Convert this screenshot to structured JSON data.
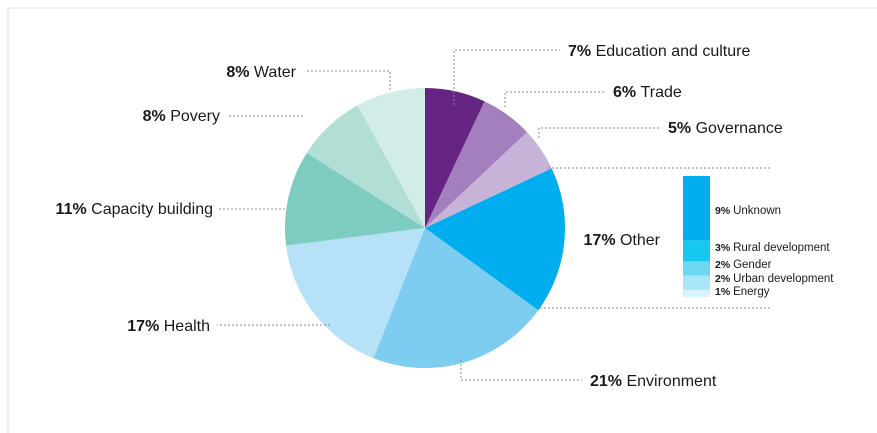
{
  "chart_data": {
    "type": "pie",
    "title": "",
    "slices": [
      {
        "label": "Education and culture",
        "pct_label": "7%",
        "value": 7,
        "color": "#662483"
      },
      {
        "label": "Trade",
        "pct_label": "6%",
        "value": 6,
        "color": "#a47fbd"
      },
      {
        "label": "Governance",
        "pct_label": "5%",
        "value": 5,
        "color": "#c8b3d8"
      },
      {
        "label": "Other",
        "pct_label": "17%",
        "value": 17,
        "color": "#00adef"
      },
      {
        "label": "Environment",
        "pct_label": "21%",
        "value": 21,
        "color": "#7dcdf0"
      },
      {
        "label": "Health",
        "pct_label": "17%",
        "value": 17,
        "color": "#b6e1f6"
      },
      {
        "label": "Capacity building",
        "pct_label": "11%",
        "value": 11,
        "color": "#7ecbbf"
      },
      {
        "label": "Povery",
        "pct_label": "8%",
        "value": 8,
        "color": "#b1ded5"
      },
      {
        "label": "Water",
        "pct_label": "8%",
        "value": 8,
        "color": "#d2ece8"
      }
    ],
    "other_breakdown": {
      "type": "stacked-bar",
      "parent": "Other",
      "segments": [
        {
          "label": "Unknown",
          "pct_label": "9%",
          "value": 9,
          "color": "#00adef"
        },
        {
          "label": "Rural development",
          "pct_label": "3%",
          "value": 3,
          "color": "#14c8ef"
        },
        {
          "label": "Gender",
          "pct_label": "2%",
          "value": 2,
          "color": "#6dd6f3"
        },
        {
          "label": "Urban development",
          "pct_label": "2%",
          "value": 2,
          "color": "#a6e6f8"
        },
        {
          "label": "Energy",
          "pct_label": "1%",
          "value": 1,
          "color": "#d8f4fb"
        }
      ]
    }
  }
}
